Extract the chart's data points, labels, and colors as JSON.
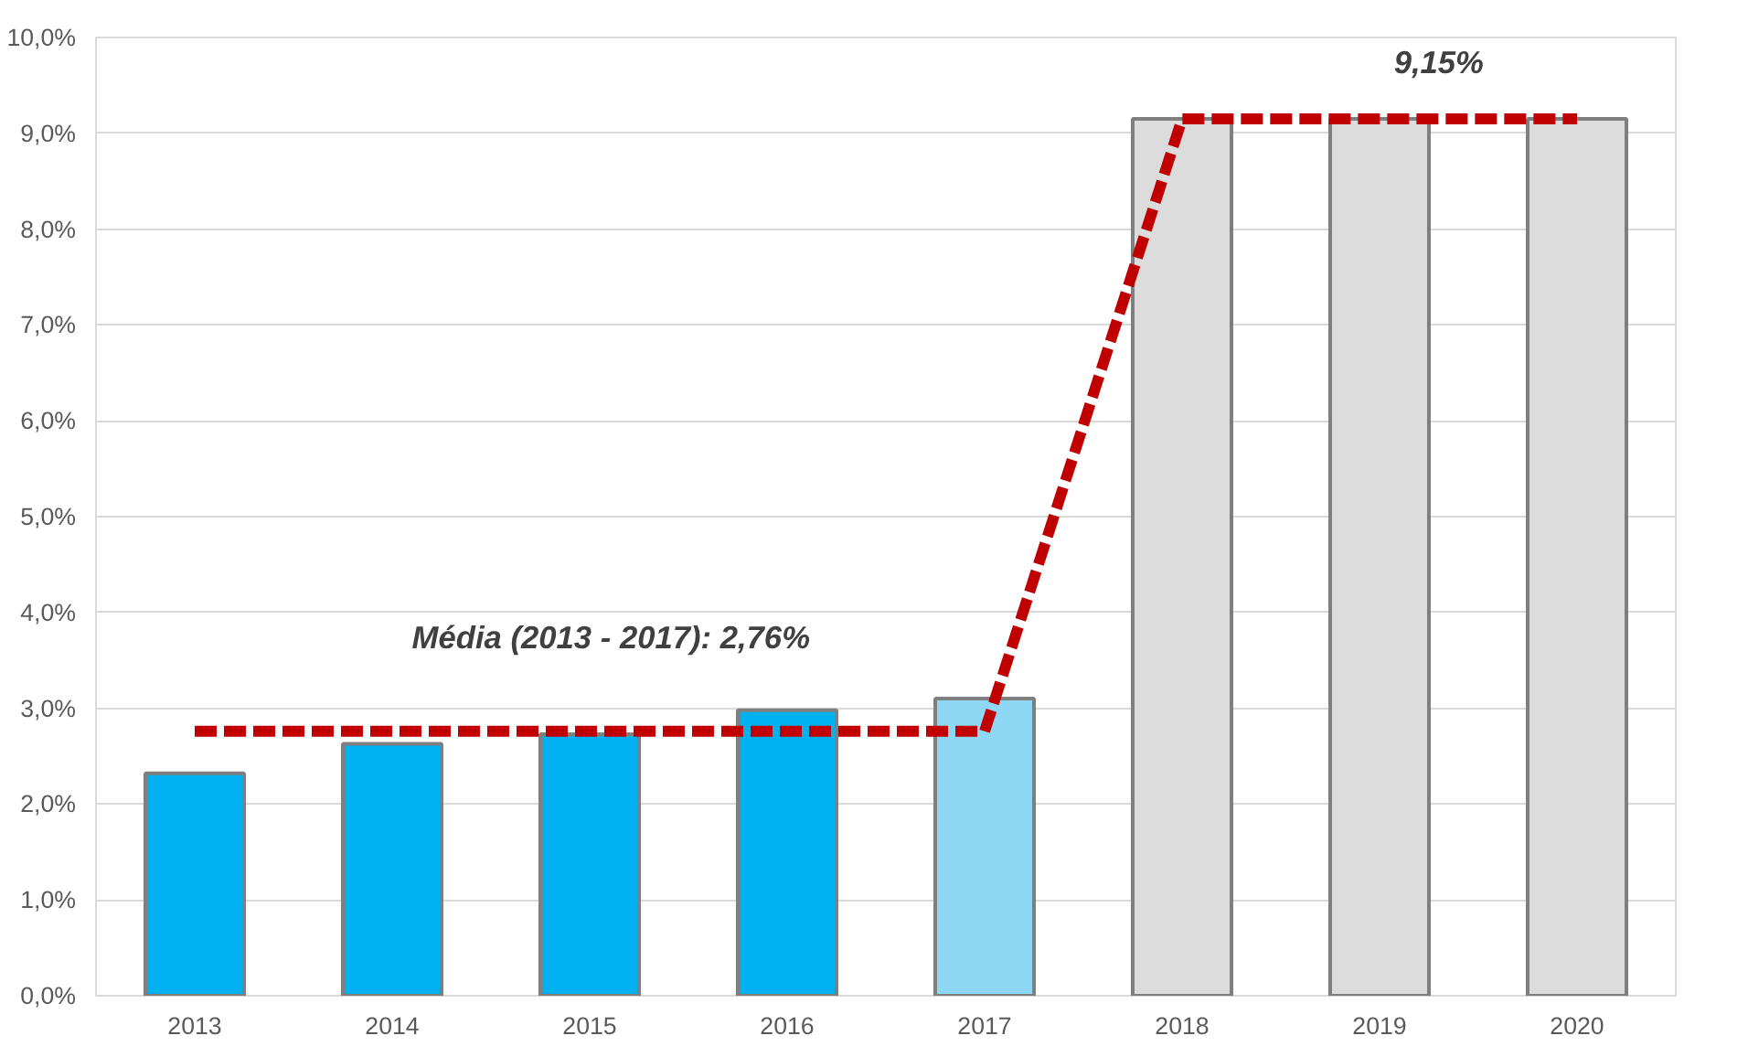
{
  "chart_data": {
    "type": "bar",
    "categories": [
      "2013",
      "2014",
      "2015",
      "2016",
      "2017",
      "2018",
      "2019",
      "2020"
    ],
    "series": [
      {
        "values": [
          2.32,
          2.63,
          2.73,
          2.98,
          3.1,
          9.15,
          9.15,
          9.15
        ],
        "colors": [
          "#00b0f0",
          "#00b0f0",
          "#00b0f0",
          "#00b0f0",
          "#8fd8f5",
          "#dcdcdc",
          "#dcdcdc",
          "#dcdcdc"
        ]
      },
      {
        "type": "line",
        "color": "#c00000",
        "line_style": "dashed",
        "values": [
          2.76,
          2.76,
          2.76,
          2.76,
          2.76,
          9.15,
          9.15,
          9.15
        ]
      }
    ],
    "ylim": [
      0,
      10
    ],
    "yticks": [
      {
        "value": 0,
        "label": "0,0%"
      },
      {
        "value": 1,
        "label": "1,0%"
      },
      {
        "value": 2,
        "label": "2,0%"
      },
      {
        "value": 3,
        "label": "3,0%"
      },
      {
        "value": 4,
        "label": "4,0%"
      },
      {
        "value": 5,
        "label": "5,0%"
      },
      {
        "value": 6,
        "label": "6,0%"
      },
      {
        "value": 7,
        "label": "7,0%"
      },
      {
        "value": 8,
        "label": "8,0%"
      },
      {
        "value": 9,
        "label": "9,0%"
      },
      {
        "value": 10,
        "label": "10,0%"
      }
    ],
    "grid": "y",
    "annotations": [
      "Média (2013 - 2017): 2,76%",
      "9,15%"
    ]
  }
}
